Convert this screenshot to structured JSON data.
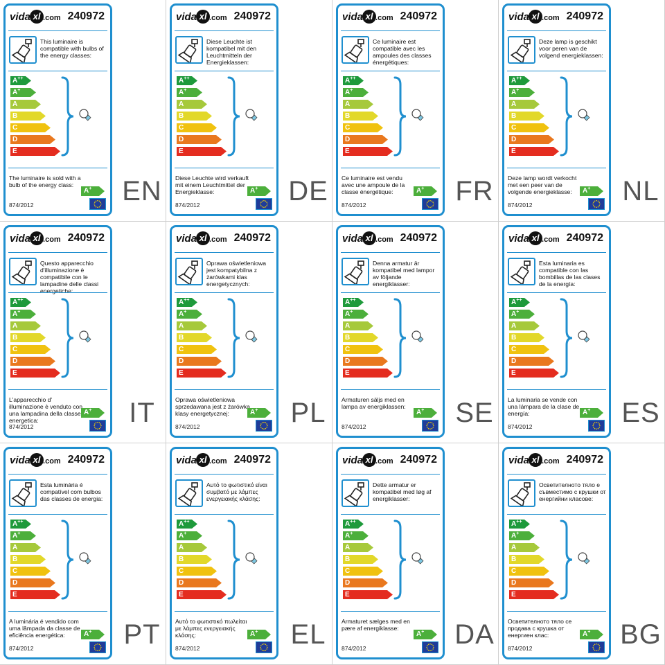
{
  "product_number": "240972",
  "logo": {
    "part1": "vida",
    "part2": "xl",
    "part3": ".com"
  },
  "regulation": "874/2012",
  "energy_classes": [
    {
      "base": "A",
      "sup": "++",
      "color": "#1e9a3b"
    },
    {
      "base": "A",
      "sup": "+",
      "color": "#4caf3b"
    },
    {
      "base": "A",
      "sup": "",
      "color": "#a6c93b"
    },
    {
      "base": "B",
      "sup": "",
      "color": "#e2d82a"
    },
    {
      "base": "C",
      "sup": "",
      "color": "#f0c20f"
    },
    {
      "base": "D",
      "sup": "",
      "color": "#e9781e"
    },
    {
      "base": "E",
      "sup": "",
      "color": "#e42c1f"
    }
  ],
  "sold_class": {
    "base": "A",
    "sup": "+",
    "color": "#4caf3b"
  },
  "colors": {
    "frame": "#1f8fcf",
    "lang_code": "#555555",
    "eu_blue": "#1f3c99",
    "eu_star": "#f5d100"
  },
  "labels": [
    {
      "code": "EN",
      "intro": "This luminaire is compatible with bulbs of the energy classes:",
      "sold": "The luminaire is sold with a bulb of the energy class:"
    },
    {
      "code": "DE",
      "intro": "Diese Leuchte ist kompatibel mit den Leuchtmitteln der Energieklassen:",
      "sold": "Diese Leuchte wird verkauft mit einem Leuchtmittel der Energieklasse:"
    },
    {
      "code": "FR",
      "intro": "Ce luminaire est compatible avec les ampoules des classes énergétiques:",
      "sold": "Ce luminaire est vendu avec une ampoule de la classe énergétique:"
    },
    {
      "code": "NL",
      "intro": "Deze lamp is geschikt voor peren van de volgend energieklassen:",
      "sold": "Deze lamp wordt verkocht met een peer van de volgende energieklasse:"
    },
    {
      "code": "IT",
      "intro": "Questo apparecchio d'illuminazione è compatibile con le lampadine delle classi energetiche:",
      "sold": "L'apparecchio d' illuminazione è venduto con una lampadina della classe energetica:"
    },
    {
      "code": "PL",
      "intro": "Oprawa oświetleniowa jest kompatybilna z żarówkami klas energetycznych:",
      "sold": "Oprawa oświetleniowa sprzedawana jest z żarówką klasy energetycznej:"
    },
    {
      "code": "SE",
      "intro": "Denna armatur är kompatibel med lampor av följande energiklasser:",
      "sold": "Armaturen säljs med en lampa av energiklassen:"
    },
    {
      "code": "ES",
      "intro": "Esta luminaria es compatible con las bombillas de las clases de la energía:",
      "sold": "La luminaria se vende con una lámpara de la clase de energía:"
    },
    {
      "code": "PT",
      "intro": "Esta luminária é compatível com bulbos das classes de energia:",
      "sold": "A luminária é vendido com uma lâmpada da classe de eficiência energética:"
    },
    {
      "code": "EL",
      "intro": "Αυτό το φωτιστικό είναι συμβατό με λάμπες ενεργειακής κλάσης:",
      "sold": "Αυτό το φωτιστικό πωλείται με λάμπες ενεργειακής κλάσης:"
    },
    {
      "code": "DA",
      "intro": "Dette armatur er kompatibel med løg af energiklasser:",
      "sold": "Armaturet sælges med en pære af energiklasse:"
    },
    {
      "code": "BG",
      "intro": "Осветителното тяло е съвместимо с крушки от енергийни класове:",
      "sold": "Осветителното тяло се продава с крушка от енергиен клас:"
    }
  ]
}
